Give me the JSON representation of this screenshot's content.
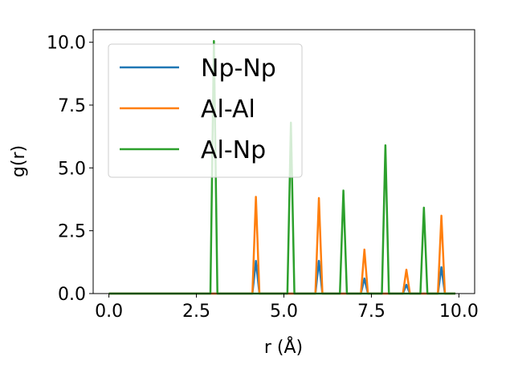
{
  "chart_data": {
    "type": "line",
    "title": "",
    "xlabel": "r (Å)",
    "ylabel": "g(r)",
    "xlim": [
      -0.45,
      10.45
    ],
    "ylim": [
      0,
      10.5
    ],
    "xticks": [
      0.0,
      2.5,
      5.0,
      7.5,
      10.0
    ],
    "xtick_labels": [
      "0.0",
      "2.5",
      "5.0",
      "7.5",
      "10.0"
    ],
    "yticks": [
      0.0,
      2.5,
      5.0,
      7.5,
      10.0
    ],
    "ytick_labels": [
      "0.0",
      "2.5",
      "5.0",
      "7.5",
      "10.0"
    ],
    "grid": false,
    "legend_position": "top-left",
    "x_range": [
      0.0,
      9.9
    ],
    "x_step": 0.1,
    "series": [
      {
        "name": "Np-Np",
        "color": "#1f77b4",
        "peaks": [
          {
            "x": 4.2,
            "y": 1.3
          },
          {
            "x": 6.0,
            "y": 1.3
          },
          {
            "x": 7.3,
            "y": 0.6
          },
          {
            "x": 8.5,
            "y": 0.35
          },
          {
            "x": 9.5,
            "y": 1.05
          }
        ]
      },
      {
        "name": "Al-Al",
        "color": "#ff7f0e",
        "peaks": [
          {
            "x": 4.2,
            "y": 3.85
          },
          {
            "x": 6.0,
            "y": 3.8
          },
          {
            "x": 7.3,
            "y": 1.75
          },
          {
            "x": 8.5,
            "y": 0.95
          },
          {
            "x": 9.5,
            "y": 3.1
          }
        ]
      },
      {
        "name": "Al-Np",
        "color": "#2ca02c",
        "peaks": [
          {
            "x": 3.0,
            "y": 10.05
          },
          {
            "x": 5.2,
            "y": 6.8
          },
          {
            "x": 6.7,
            "y": 4.1
          },
          {
            "x": 7.9,
            "y": 5.9
          },
          {
            "x": 9.0,
            "y": 3.42
          }
        ]
      }
    ]
  }
}
